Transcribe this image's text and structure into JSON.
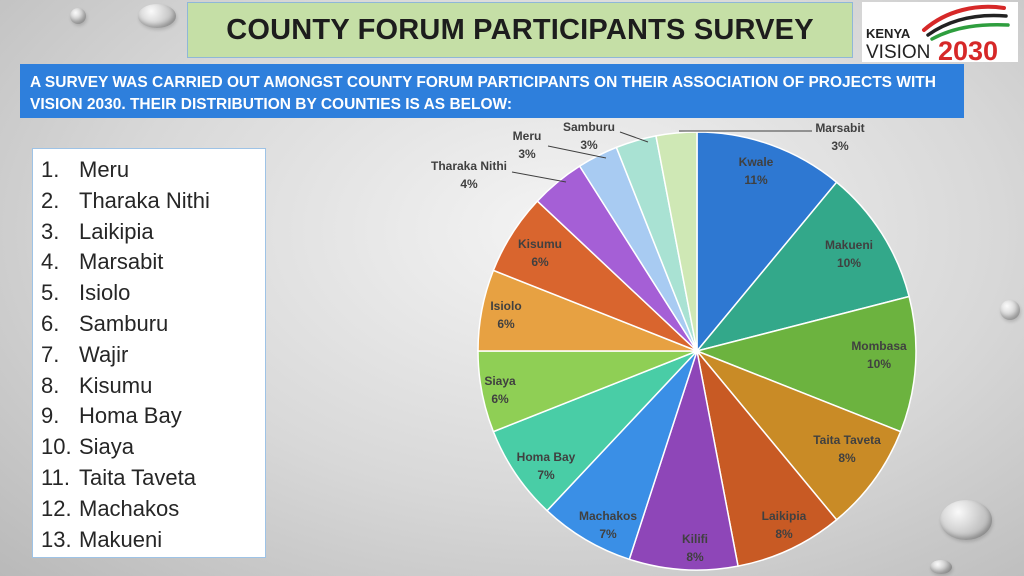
{
  "header": {
    "title": "COUNTY FORUM PARTICIPANTS SURVEY",
    "logo": {
      "top_word": "KENYA",
      "bottom_word": "VISION",
      "year": "2030"
    }
  },
  "subtitle": "A SURVEY WAS CARRIED OUT AMONGST COUNTY FORUM PARTICIPANTS ON THEIR ASSOCIATION OF PROJECTS WITH VISION 2030. THEIR DISTRIBUTION BY COUNTIES IS AS BELOW:",
  "county_list": [
    {
      "num": "1.",
      "name": "Meru"
    },
    {
      "num": "2.",
      "name": "Tharaka Nithi"
    },
    {
      "num": "3.",
      "name": "Laikipia"
    },
    {
      "num": "4.",
      "name": "Marsabit"
    },
    {
      "num": "5.",
      "name": "Isiolo"
    },
    {
      "num": "6.",
      "name": "Samburu"
    },
    {
      "num": "7.",
      "name": "Wajir"
    },
    {
      "num": "8.",
      "name": "Kisumu"
    },
    {
      "num": "9.",
      "name": "Homa Bay"
    },
    {
      "num": "10.",
      "name": "Siaya"
    },
    {
      "num": "11.",
      "name": "Taita Taveta"
    },
    {
      "num": "12.",
      "name": "Machakos"
    },
    {
      "num": "13.",
      "name": "Makueni"
    }
  ],
  "chart_data": {
    "type": "pie",
    "title": "",
    "slices": [
      {
        "label": "Kwale",
        "value": 11,
        "display": "11%",
        "color": "#2e78d2"
      },
      {
        "label": "Makueni",
        "value": 10,
        "display": "10%",
        "color": "#33a88a"
      },
      {
        "label": "Mombasa",
        "value": 10,
        "display": "10%",
        "color": "#6cb33f"
      },
      {
        "label": "Taita Taveta",
        "value": 8,
        "display": "8%",
        "color": "#c98b26"
      },
      {
        "label": "Laikipia",
        "value": 8,
        "display": "8%",
        "color": "#c85a24"
      },
      {
        "label": "Kilifi",
        "value": 8,
        "display": "8%",
        "color": "#8e46b8"
      },
      {
        "label": "Machakos",
        "value": 7,
        "display": "7%",
        "color": "#3a8fe6"
      },
      {
        "label": "Homa Bay",
        "value": 7,
        "display": "7%",
        "color": "#49cda6"
      },
      {
        "label": "Siaya",
        "value": 6,
        "display": "6%",
        "color": "#8fcf55"
      },
      {
        "label": "Isiolo",
        "value": 6,
        "display": "6%",
        "color": "#e7a142"
      },
      {
        "label": "Kisumu",
        "value": 6,
        "display": "6%",
        "color": "#d9652e"
      },
      {
        "label": "Tharaka Nithi",
        "value": 4,
        "display": "4%",
        "color": "#a55fd6"
      },
      {
        "label": "Meru",
        "value": 3,
        "display": "3%",
        "color": "#a8cbf2"
      },
      {
        "label": "Samburu",
        "value": 3,
        "display": "3%",
        "color": "#a9e2d3"
      },
      {
        "label": "Marsabit",
        "value": 3,
        "display": "3%",
        "color": "#cfe8b5"
      }
    ]
  }
}
